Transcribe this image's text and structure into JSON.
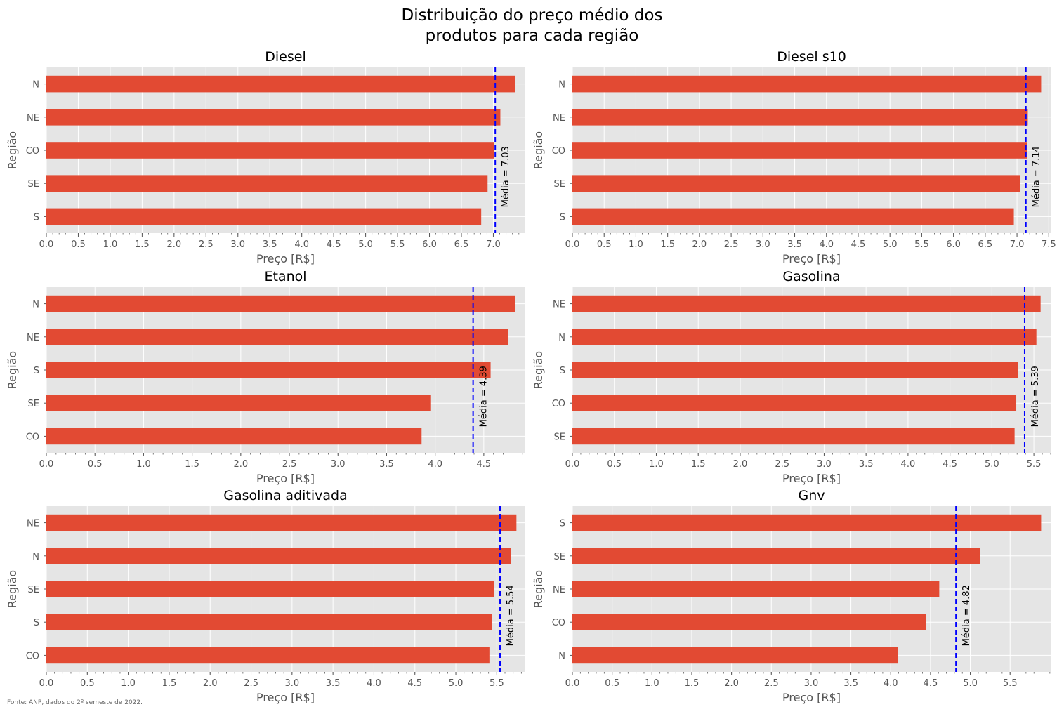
{
  "figure": {
    "suptitle_line1": "Distribuição do preço médio dos",
    "suptitle_line2": "produtos para cada região",
    "footnote": "Fonte: ANP, dados do 2º semeste de 2022."
  },
  "colors": {
    "bar": "#E24A33",
    "mean_line": "#0000ff",
    "plot_bg": "#E5E5E5",
    "grid": "#ffffff",
    "tick_text": "#555555"
  },
  "chart_data": [
    {
      "type": "bar",
      "orientation": "horizontal",
      "title": "Diesel",
      "xlabel": "Preço [R$]",
      "ylabel": "Região",
      "categories": [
        "N",
        "NE",
        "CO",
        "SE",
        "S"
      ],
      "values": [
        7.34,
        7.11,
        7.01,
        6.91,
        6.81
      ],
      "xlim": [
        0,
        7.49
      ],
      "xticks": [
        "0.0",
        "0.5",
        "1.0",
        "1.5",
        "2.0",
        "2.5",
        "3.0",
        "3.5",
        "4.0",
        "4.5",
        "5.0",
        "5.5",
        "6.0",
        "6.5",
        "7.0"
      ],
      "mean": 7.03,
      "mean_label": "Média = 7.03"
    },
    {
      "type": "bar",
      "orientation": "horizontal",
      "title": "Diesel s10",
      "xlabel": "Preço [R$]",
      "ylabel": "Região",
      "categories": [
        "N",
        "NE",
        "CO",
        "SE",
        "S"
      ],
      "values": [
        7.38,
        7.17,
        7.16,
        7.05,
        6.95
      ],
      "xlim": [
        0,
        7.53
      ],
      "xticks": [
        "0.0",
        "0.5",
        "1.0",
        "1.5",
        "2.0",
        "2.5",
        "3.0",
        "3.5",
        "4.0",
        "4.5",
        "5.0",
        "5.5",
        "6.0",
        "6.5",
        "7.0",
        "7.5"
      ],
      "mean": 7.14,
      "mean_label": "Média = 7.14"
    },
    {
      "type": "bar",
      "orientation": "horizontal",
      "title": "Etanol",
      "xlabel": "Preço [R$]",
      "ylabel": "Região",
      "categories": [
        "N",
        "NE",
        "S",
        "SE",
        "CO"
      ],
      "values": [
        4.82,
        4.75,
        4.57,
        3.95,
        3.86
      ],
      "xlim": [
        0,
        4.92
      ],
      "xticks": [
        "0.0",
        "0.5",
        "1.0",
        "1.5",
        "2.0",
        "2.5",
        "3.0",
        "3.5",
        "4.0",
        "4.5"
      ],
      "mean": 4.39,
      "mean_label": "Média = 4.39"
    },
    {
      "type": "bar",
      "orientation": "horizontal",
      "title": "Gasolina",
      "xlabel": "Preço [R$]",
      "ylabel": "Região",
      "categories": [
        "NE",
        "N",
        "S",
        "CO",
        "SE"
      ],
      "values": [
        5.58,
        5.53,
        5.31,
        5.29,
        5.27
      ],
      "xlim": [
        0,
        5.7
      ],
      "xticks": [
        "0.0",
        "0.5",
        "1.0",
        "1.5",
        "2.0",
        "2.5",
        "3.0",
        "3.5",
        "4.0",
        "4.5",
        "5.0",
        "5.5"
      ],
      "mean": 5.39,
      "mean_label": "Média = 5.39"
    },
    {
      "type": "bar",
      "orientation": "horizontal",
      "title": "Gasolina aditivada",
      "xlabel": "Preço [R$]",
      "ylabel": "Região",
      "categories": [
        "NE",
        "N",
        "SE",
        "S",
        "CO"
      ],
      "values": [
        5.74,
        5.67,
        5.47,
        5.44,
        5.41
      ],
      "xlim": [
        0,
        5.84
      ],
      "xticks": [
        "0.0",
        "0.5",
        "1.0",
        "1.5",
        "2.0",
        "2.5",
        "3.0",
        "3.5",
        "4.0",
        "4.5",
        "5.0",
        "5.5"
      ],
      "mean": 5.54,
      "mean_label": "Média = 5.54"
    },
    {
      "type": "bar",
      "orientation": "horizontal",
      "title": "Gnv",
      "xlabel": "Preço [R$]",
      "ylabel": "Região",
      "categories": [
        "S",
        "SE",
        "NE",
        "CO",
        "N"
      ],
      "values": [
        5.89,
        5.12,
        4.61,
        4.44,
        4.09
      ],
      "xlim": [
        0,
        6.01
      ],
      "xticks": [
        "0.0",
        "0.5",
        "1.0",
        "1.5",
        "2.0",
        "2.5",
        "3.0",
        "3.5",
        "4.0",
        "4.5",
        "5.0",
        "5.5"
      ],
      "mean": 4.82,
      "mean_label": "Média = 4.82"
    }
  ]
}
